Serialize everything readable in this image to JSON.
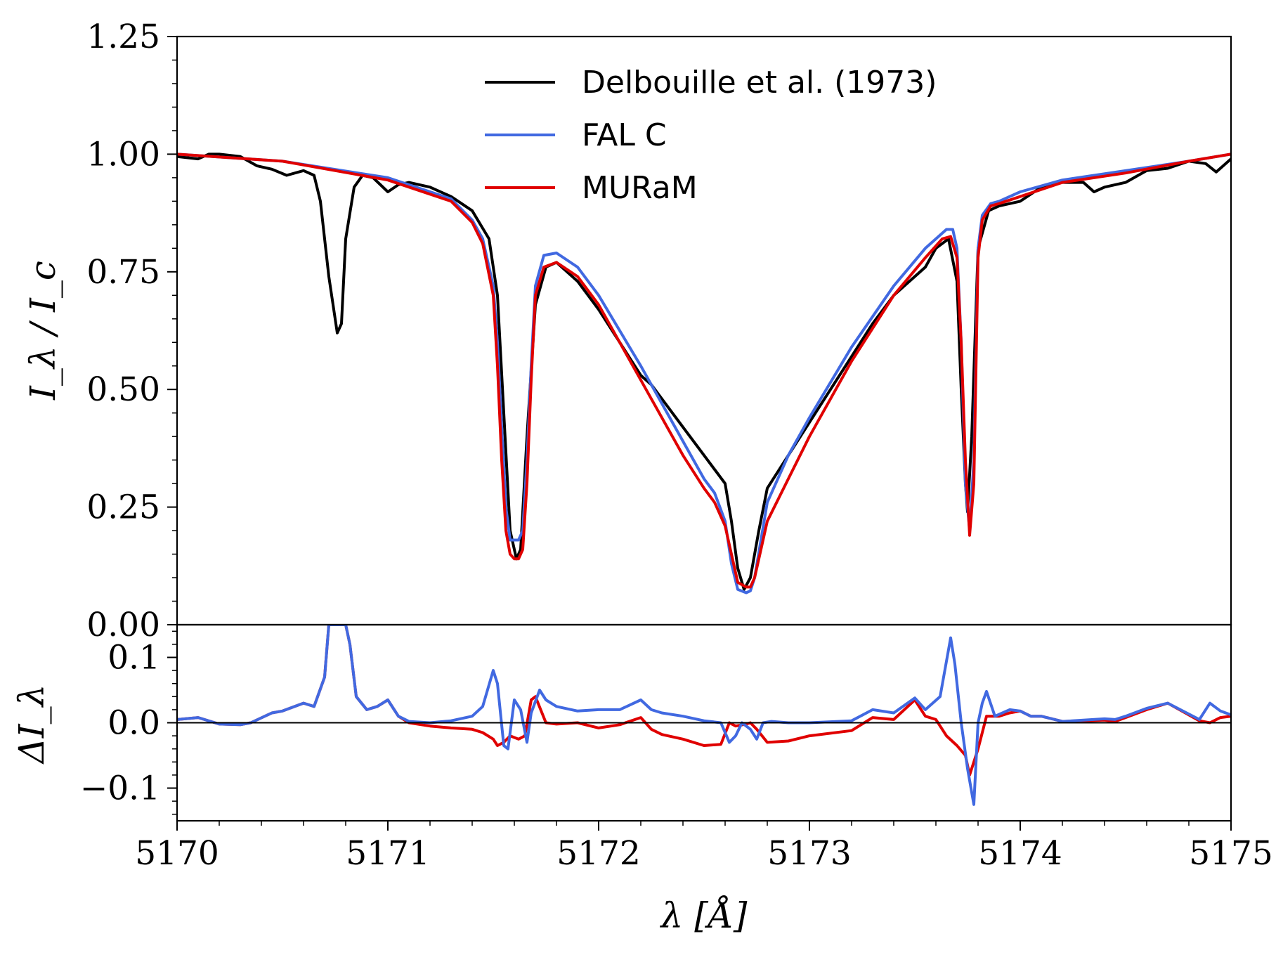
{
  "chart_data": [
    {
      "type": "line",
      "panel": "top",
      "ylabel": "I_λ / I_c",
      "xlim": [
        5170,
        5175
      ],
      "ylim": [
        0,
        1.25
      ],
      "yticks": [
        "0.00",
        "0.25",
        "0.50",
        "0.75",
        "1.00",
        "1.25"
      ],
      "legend": {
        "placement": "top-center"
      },
      "series": [
        {
          "name": "Delbouille et al. (1973)",
          "color": "#000000",
          "x": [
            5170.0,
            5170.1,
            5170.15,
            5170.2,
            5170.3,
            5170.38,
            5170.45,
            5170.52,
            5170.6,
            5170.65,
            5170.68,
            5170.72,
            5170.76,
            5170.78,
            5170.8,
            5170.84,
            5170.88,
            5170.93,
            5171.0,
            5171.05,
            5171.1,
            5171.2,
            5171.3,
            5171.4,
            5171.48,
            5171.52,
            5171.55,
            5171.58,
            5171.61,
            5171.63,
            5171.66,
            5171.7,
            5171.75,
            5171.8,
            5171.9,
            5172.0,
            5172.1,
            5172.2,
            5172.25,
            5172.3,
            5172.4,
            5172.5,
            5172.55,
            5172.6,
            5172.63,
            5172.66,
            5172.69,
            5172.72,
            5172.76,
            5172.8,
            5172.9,
            5173.0,
            5173.1,
            5173.2,
            5173.3,
            5173.4,
            5173.5,
            5173.55,
            5173.6,
            5173.66,
            5173.7,
            5173.72,
            5173.74,
            5173.75,
            5173.77,
            5173.8,
            5173.85,
            5173.9,
            5174.0,
            5174.1,
            5174.2,
            5174.3,
            5174.35,
            5174.4,
            5174.5,
            5174.6,
            5174.7,
            5174.8,
            5174.88,
            5174.93,
            5175.0
          ],
          "y": [
            0.995,
            0.99,
            1.0,
            1.0,
            0.995,
            0.975,
            0.968,
            0.955,
            0.965,
            0.955,
            0.9,
            0.74,
            0.62,
            0.64,
            0.82,
            0.93,
            0.955,
            0.95,
            0.92,
            0.935,
            0.94,
            0.93,
            0.91,
            0.88,
            0.82,
            0.7,
            0.45,
            0.2,
            0.14,
            0.16,
            0.4,
            0.68,
            0.76,
            0.77,
            0.73,
            0.67,
            0.6,
            0.53,
            0.51,
            0.48,
            0.42,
            0.36,
            0.33,
            0.3,
            0.22,
            0.12,
            0.075,
            0.1,
            0.2,
            0.29,
            0.36,
            0.43,
            0.5,
            0.57,
            0.64,
            0.7,
            0.74,
            0.76,
            0.8,
            0.82,
            0.73,
            0.5,
            0.3,
            0.24,
            0.4,
            0.8,
            0.88,
            0.89,
            0.9,
            0.93,
            0.94,
            0.94,
            0.92,
            0.93,
            0.94,
            0.965,
            0.97,
            0.985,
            0.98,
            0.962,
            0.99
          ]
        },
        {
          "name": "FAL C",
          "color": "#4169e1",
          "x": [
            5170.0,
            5170.5,
            5171.0,
            5171.3,
            5171.4,
            5171.45,
            5171.5,
            5171.52,
            5171.54,
            5171.56,
            5171.58,
            5171.6,
            5171.62,
            5171.64,
            5171.66,
            5171.68,
            5171.7,
            5171.74,
            5171.8,
            5171.9,
            5172.0,
            5172.2,
            5172.4,
            5172.5,
            5172.55,
            5172.6,
            5172.63,
            5172.66,
            5172.7,
            5172.72,
            5172.74,
            5172.77,
            5172.8,
            5172.9,
            5173.0,
            5173.2,
            5173.4,
            5173.55,
            5173.65,
            5173.68,
            5173.7,
            5173.72,
            5173.74,
            5173.76,
            5173.78,
            5173.8,
            5173.82,
            5173.86,
            5173.9,
            5174.0,
            5174.2,
            5174.5,
            5174.8,
            5175.0
          ],
          "y": [
            1.0,
            0.985,
            0.95,
            0.905,
            0.86,
            0.82,
            0.72,
            0.6,
            0.42,
            0.25,
            0.18,
            0.18,
            0.18,
            0.2,
            0.35,
            0.55,
            0.72,
            0.785,
            0.79,
            0.76,
            0.7,
            0.55,
            0.39,
            0.31,
            0.28,
            0.22,
            0.13,
            0.075,
            0.068,
            0.072,
            0.1,
            0.18,
            0.26,
            0.36,
            0.44,
            0.59,
            0.72,
            0.8,
            0.84,
            0.84,
            0.8,
            0.6,
            0.3,
            0.2,
            0.35,
            0.8,
            0.87,
            0.895,
            0.9,
            0.92,
            0.945,
            0.965,
            0.985,
            1.0
          ]
        },
        {
          "name": "MURaM",
          "color": "#e00000",
          "x": [
            5170.0,
            5170.5,
            5171.0,
            5171.3,
            5171.4,
            5171.45,
            5171.5,
            5171.52,
            5171.54,
            5171.56,
            5171.58,
            5171.6,
            5171.62,
            5171.64,
            5171.66,
            5171.68,
            5171.7,
            5171.74,
            5171.8,
            5171.9,
            5172.0,
            5172.2,
            5172.4,
            5172.5,
            5172.55,
            5172.6,
            5172.63,
            5172.66,
            5172.7,
            5172.72,
            5172.74,
            5172.77,
            5172.8,
            5172.9,
            5173.0,
            5173.2,
            5173.4,
            5173.55,
            5173.63,
            5173.67,
            5173.7,
            5173.72,
            5173.74,
            5173.76,
            5173.78,
            5173.8,
            5173.82,
            5173.86,
            5173.9,
            5174.0,
            5174.2,
            5174.5,
            5174.8,
            5175.0
          ],
          "y": [
            1.0,
            0.985,
            0.945,
            0.9,
            0.855,
            0.81,
            0.7,
            0.55,
            0.35,
            0.2,
            0.15,
            0.14,
            0.14,
            0.16,
            0.3,
            0.52,
            0.7,
            0.76,
            0.77,
            0.74,
            0.68,
            0.52,
            0.36,
            0.29,
            0.26,
            0.21,
            0.15,
            0.09,
            0.08,
            0.08,
            0.1,
            0.16,
            0.22,
            0.31,
            0.4,
            0.56,
            0.7,
            0.78,
            0.82,
            0.825,
            0.78,
            0.6,
            0.35,
            0.19,
            0.3,
            0.78,
            0.86,
            0.89,
            0.895,
            0.91,
            0.94,
            0.96,
            0.985,
            1.0
          ]
        }
      ]
    },
    {
      "type": "line",
      "panel": "bottom",
      "ylabel": "ΔI_λ",
      "xlabel": "λ [Å]",
      "xlim": [
        5170,
        5175
      ],
      "ylim": [
        -0.15,
        0.15
      ],
      "xticks": [
        "5170",
        "5171",
        "5172",
        "5173",
        "5174",
        "5175"
      ],
      "yticks": [
        "−0.1",
        "0.0",
        "0.1"
      ],
      "zero_line": true,
      "series": [
        {
          "name": "MURaM",
          "color": "#e00000",
          "x": [
            5170.0,
            5170.1,
            5170.2,
            5170.3,
            5170.35,
            5170.45,
            5170.5,
            5170.6,
            5170.65,
            5170.7,
            5170.72,
            5170.75,
            5170.8,
            5170.82,
            5170.85,
            5170.9,
            5170.95,
            5171.0,
            5171.05,
            5171.1,
            5171.2,
            5171.3,
            5171.4,
            5171.45,
            5171.5,
            5171.52,
            5171.55,
            5171.58,
            5171.62,
            5171.65,
            5171.68,
            5171.7,
            5171.75,
            5171.8,
            5171.9,
            5172.0,
            5172.1,
            5172.2,
            5172.25,
            5172.3,
            5172.4,
            5172.5,
            5172.58,
            5172.62,
            5172.65,
            5172.7,
            5172.72,
            5172.75,
            5172.8,
            5172.9,
            5173.0,
            5173.2,
            5173.3,
            5173.4,
            5173.5,
            5173.55,
            5173.6,
            5173.65,
            5173.7,
            5173.74,
            5173.76,
            5173.8,
            5173.84,
            5173.9,
            5173.95,
            5174.0,
            5174.05,
            5174.1,
            5174.2,
            5174.3,
            5174.4,
            5174.45,
            5174.5,
            5174.6,
            5174.7,
            5174.85,
            5174.9,
            5174.95,
            5175.0
          ],
          "y": [
            0.005,
            0.008,
            -0.002,
            -0.003,
            0.0,
            0.015,
            0.018,
            0.03,
            0.025,
            0.07,
            0.15,
            0.15,
            0.15,
            0.12,
            0.04,
            0.02,
            0.025,
            0.035,
            0.01,
            0.0,
            -0.005,
            -0.008,
            -0.01,
            -0.015,
            -0.025,
            -0.035,
            -0.03,
            -0.02,
            -0.025,
            -0.02,
            0.035,
            0.04,
            0.0,
            -0.002,
            0.0,
            -0.008,
            -0.003,
            0.008,
            -0.01,
            -0.018,
            -0.025,
            -0.035,
            -0.033,
            0.0,
            -0.005,
            -0.002,
            0.0,
            -0.01,
            -0.03,
            -0.028,
            -0.02,
            -0.012,
            0.008,
            0.005,
            0.035,
            0.01,
            0.005,
            -0.02,
            -0.035,
            -0.05,
            -0.08,
            -0.04,
            0.01,
            0.01,
            0.015,
            0.018,
            0.01,
            0.01,
            0.002,
            0.003,
            0.004,
            0.002,
            0.008,
            0.02,
            0.03,
            0.003,
            0.0,
            0.008,
            0.01
          ]
        },
        {
          "name": "FAL C",
          "color": "#4169e1",
          "x": [
            5170.0,
            5170.1,
            5170.2,
            5170.3,
            5170.35,
            5170.45,
            5170.5,
            5170.6,
            5170.65,
            5170.7,
            5170.72,
            5170.75,
            5170.8,
            5170.82,
            5170.85,
            5170.9,
            5170.95,
            5171.0,
            5171.05,
            5171.1,
            5171.2,
            5171.3,
            5171.4,
            5171.45,
            5171.5,
            5171.52,
            5171.55,
            5171.57,
            5171.6,
            5171.63,
            5171.66,
            5171.68,
            5171.72,
            5171.75,
            5171.8,
            5171.9,
            5172.0,
            5172.1,
            5172.2,
            5172.25,
            5172.3,
            5172.4,
            5172.5,
            5172.58,
            5172.62,
            5172.65,
            5172.68,
            5172.72,
            5172.75,
            5172.78,
            5172.82,
            5172.9,
            5173.0,
            5173.2,
            5173.3,
            5173.4,
            5173.5,
            5173.55,
            5173.62,
            5173.67,
            5173.69,
            5173.72,
            5173.75,
            5173.78,
            5173.8,
            5173.82,
            5173.84,
            5173.88,
            5173.95,
            5174.0,
            5174.05,
            5174.1,
            5174.2,
            5174.3,
            5174.4,
            5174.45,
            5174.5,
            5174.6,
            5174.7,
            5174.85,
            5174.9,
            5174.95,
            5175.0
          ],
          "y": [
            0.005,
            0.008,
            -0.002,
            -0.003,
            0.0,
            0.015,
            0.018,
            0.03,
            0.025,
            0.07,
            0.15,
            0.15,
            0.15,
            0.12,
            0.04,
            0.02,
            0.025,
            0.035,
            0.01,
            0.002,
            0.0,
            0.003,
            0.01,
            0.025,
            0.08,
            0.06,
            -0.035,
            -0.04,
            0.035,
            0.02,
            -0.03,
            0.015,
            0.05,
            0.035,
            0.025,
            0.018,
            0.02,
            0.02,
            0.035,
            0.02,
            0.015,
            0.01,
            0.003,
            0.0,
            -0.03,
            -0.02,
            0.0,
            -0.01,
            -0.025,
            0.0,
            0.002,
            0.0,
            0.0,
            0.003,
            0.02,
            0.015,
            0.038,
            0.02,
            0.04,
            0.13,
            0.09,
            0.0,
            -0.07,
            -0.125,
            0.0,
            0.03,
            0.048,
            0.01,
            0.02,
            0.018,
            0.01,
            0.01,
            0.002,
            0.004,
            0.006,
            0.005,
            0.01,
            0.022,
            0.03,
            0.005,
            0.03,
            0.018,
            0.012
          ]
        },
        {
          "name": "zero",
          "color": "#000000",
          "x": [
            5170,
            5175
          ],
          "y": [
            0,
            0
          ]
        }
      ]
    }
  ]
}
